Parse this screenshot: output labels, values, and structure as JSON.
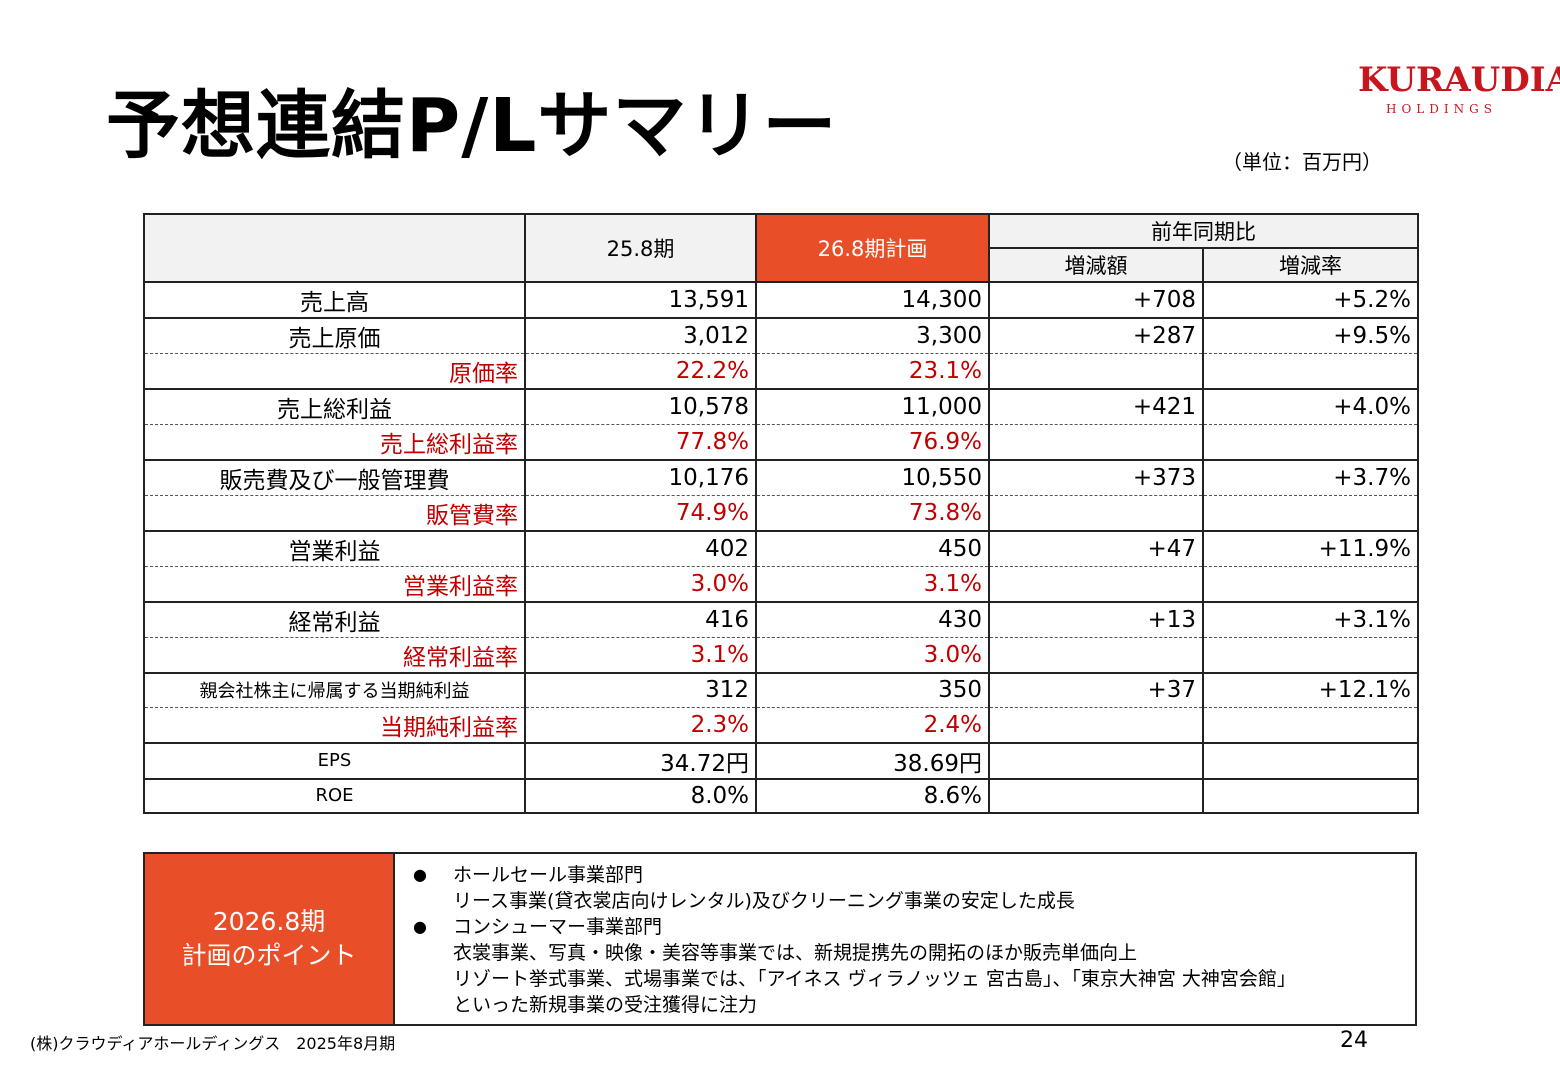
{
  "title": "予想連結P/Lサマリー",
  "unit": "（単位：百万円）",
  "logo": {
    "main": "KURAUDIA",
    "sub": "HOLDINGS",
    "color": "#c8161e"
  },
  "accent_color": "#e84e27",
  "header": {
    "col1": "25.8期",
    "col2": "26.8期計画",
    "yoy": "前年同期比",
    "diff": "増減額",
    "rate": "増減率"
  },
  "rows": [
    {
      "label": "売上高",
      "v1": "13,591",
      "v2": "14,300",
      "diff": "+708",
      "rate": "+5.2%"
    },
    {
      "label": "売上原価",
      "v1": "3,012",
      "v2": "3,300",
      "diff": "+287",
      "rate": "+9.5%"
    },
    {
      "label": "原価率",
      "v1": "22.2%",
      "v2": "23.1%",
      "diff": "",
      "rate": ""
    },
    {
      "label": "売上総利益",
      "v1": "10,578",
      "v2": "11,000",
      "diff": "+421",
      "rate": "+4.0%"
    },
    {
      "label": "売上総利益率",
      "v1": "77.8%",
      "v2": "76.9%",
      "diff": "",
      "rate": ""
    },
    {
      "label": "販売費及び一般管理費",
      "v1": "10,176",
      "v2": "10,550",
      "diff": "+373",
      "rate": "+3.7%"
    },
    {
      "label": "販管費率",
      "v1": "74.9%",
      "v2": "73.8%",
      "diff": "",
      "rate": ""
    },
    {
      "label": "営業利益",
      "v1": "402",
      "v2": "450",
      "diff": "+47",
      "rate": "+11.9%"
    },
    {
      "label": "営業利益率",
      "v1": "3.0%",
      "v2": "3.1%",
      "diff": "",
      "rate": ""
    },
    {
      "label": "経常利益",
      "v1": "416",
      "v2": "430",
      "diff": "+13",
      "rate": "+3.1%"
    },
    {
      "label": "経常利益率",
      "v1": "3.1%",
      "v2": "3.0%",
      "diff": "",
      "rate": ""
    },
    {
      "label": "親会社株主に帰属する当期純利益",
      "v1": "312",
      "v2": "350",
      "diff": "+37",
      "rate": "+12.1%"
    },
    {
      "label": "当期純利益率",
      "v1": "2.3%",
      "v2": "2.4%",
      "diff": "",
      "rate": ""
    },
    {
      "label": "EPS",
      "v1": "34.72円",
      "v2": "38.69円",
      "diff": "",
      "rate": ""
    },
    {
      "label": "ROE",
      "v1": "8.0%",
      "v2": "8.6%",
      "diff": "",
      "rate": ""
    }
  ],
  "points": {
    "head_line1": "2026.8期",
    "head_line2": "計画のポイント",
    "bullet": "●",
    "wholesale_title": "ホールセール事業部門",
    "wholesale_text": "リース事業(貸衣裳店向けレンタル)及びクリーニング事業の安定した成長",
    "consumer_title": "コンシューマー事業部門",
    "consumer_text1": "衣裳事業、写真・映像・美容等事業では、新規提携先の開拓のほか販売単価向上",
    "consumer_text2": "リゾート挙式事業、式場事業では、「アイネス ヴィラノッツェ 宮古島」、「東京大神宮 大神宮会館」",
    "consumer_text3": "といった新規事業の受注獲得に注力"
  },
  "footer": {
    "company": "(株)クラウディアホールディングス　2025年8月期",
    "page": "24"
  }
}
